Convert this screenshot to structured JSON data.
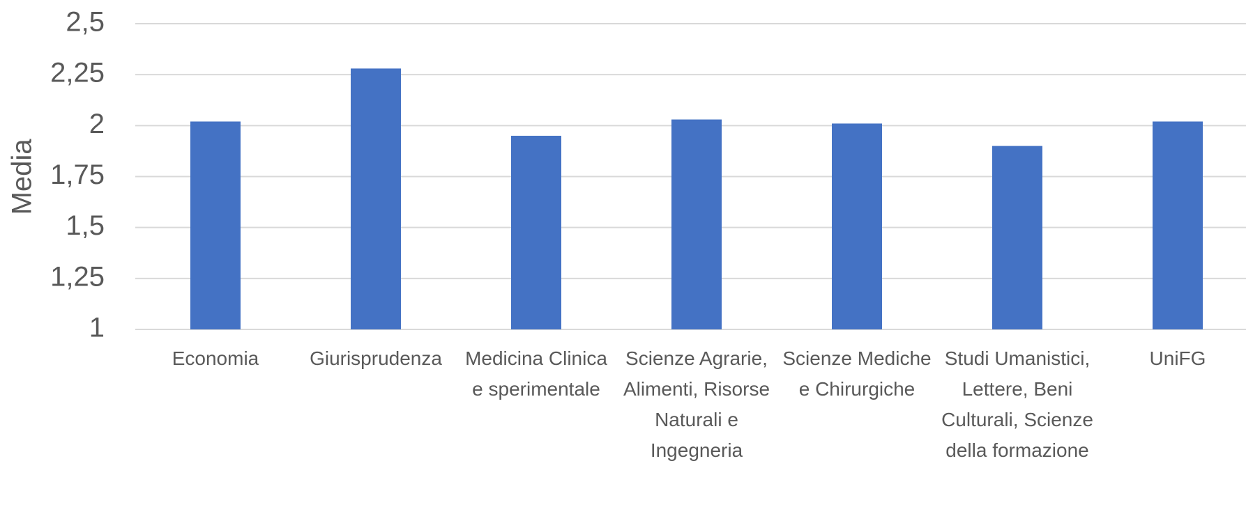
{
  "chart_data": {
    "type": "bar",
    "y_label": "Media",
    "categories": [
      "Economia",
      "Giurisprudenza",
      "Medicina Clinica e sperimentale",
      "Scienze Agrarie, Alimenti, Risorse Naturali e Ingegneria",
      "Scienze Mediche e Chirurgiche",
      "Studi Umanistici, Lettere, Beni Culturali, Scienze della formazione",
      "UniFG"
    ],
    "values": [
      2.02,
      2.28,
      1.95,
      2.03,
      2.01,
      1.9,
      2.02
    ],
    "color": "#4472c4",
    "ylim": [
      1,
      2.5
    ],
    "yticks": [
      1,
      {
        "value": 1.25,
        "label": "1,25"
      },
      {
        "value": 1.5,
        "label": "1,5"
      },
      {
        "value": 1.75,
        "label": "1,75"
      },
      2,
      {
        "value": 2.25,
        "label": "2,25"
      },
      {
        "value": 2.5,
        "label": "2,5"
      }
    ],
    "grid": true
  }
}
